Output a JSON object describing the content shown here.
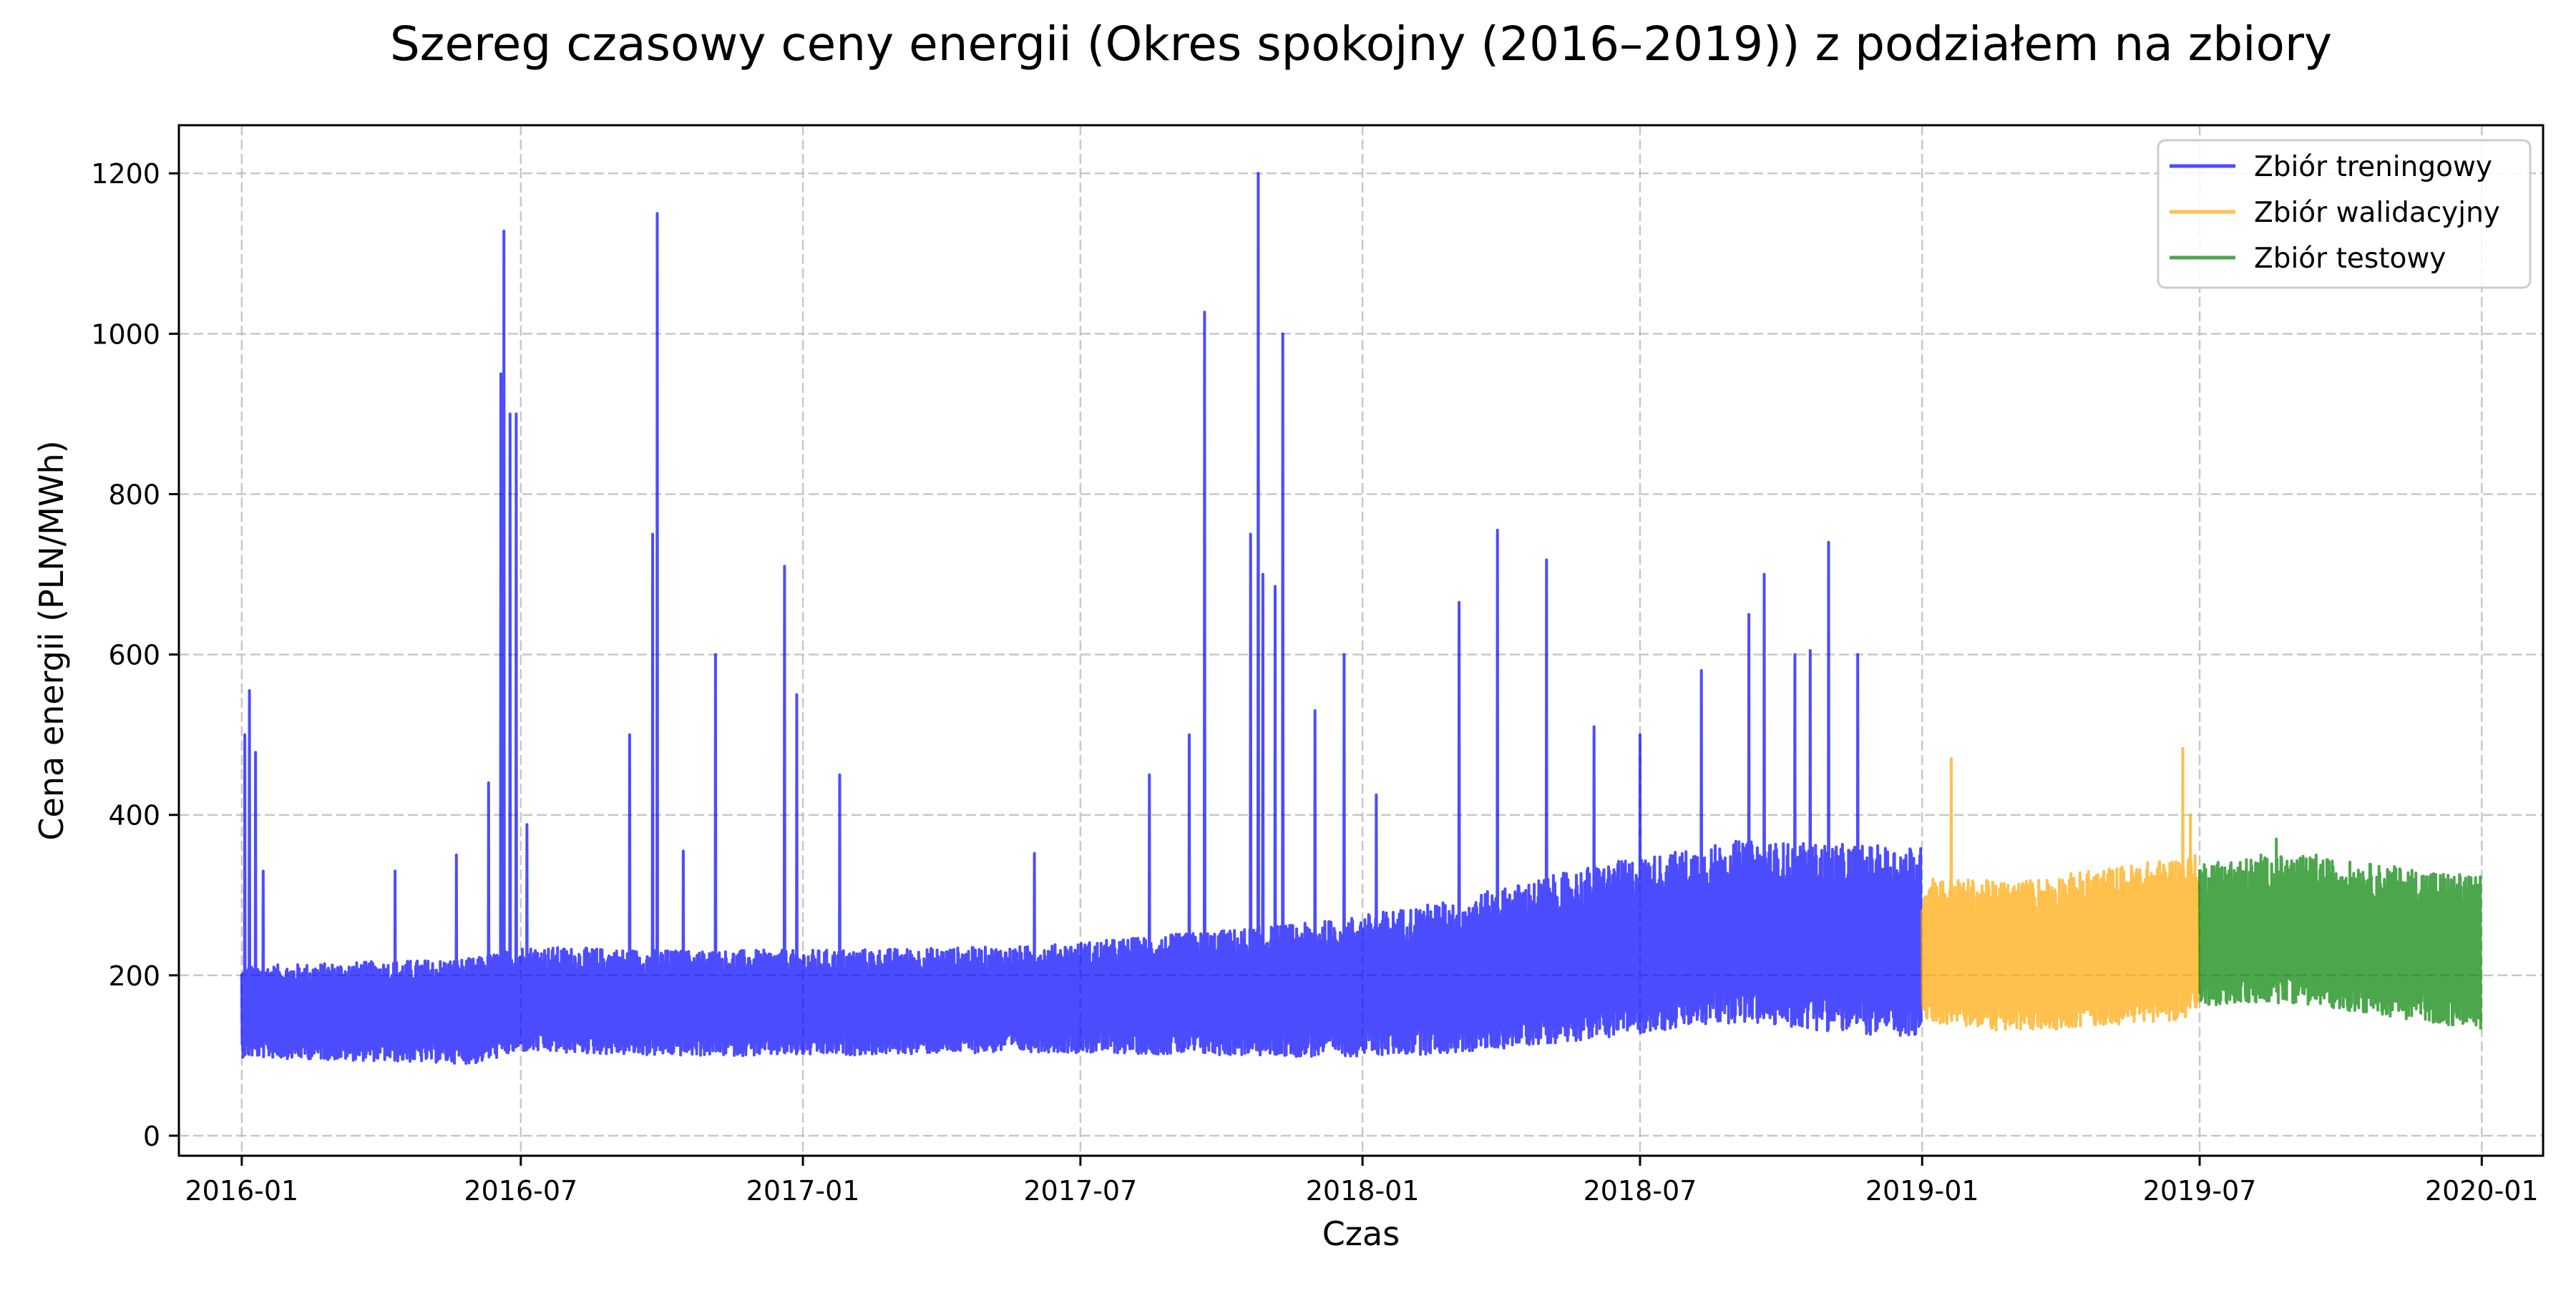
{
  "chart_data": {
    "type": "line",
    "title": "Szereg czasowy ceny energii (Okres spokojny (2016–2019)) z podziałem na zbiory",
    "xlabel": "Czas",
    "ylabel": "Cena energii (PLN/MWh)",
    "ylim": [
      -25,
      1260
    ],
    "xlim": [
      "2015-11-21",
      "2020-02-10"
    ],
    "yticks": [
      0,
      200,
      400,
      600,
      800,
      1000,
      1200
    ],
    "xticks": [
      "2016-01",
      "2016-07",
      "2017-01",
      "2017-07",
      "2018-01",
      "2018-07",
      "2019-01",
      "2019-07",
      "2020-01"
    ],
    "grid": true,
    "legend_position": "top-right",
    "series": [
      {
        "name": "Zbiór treningowy",
        "color": "#0000ff",
        "start": "2016-01-01",
        "end": "2018-12-31",
        "base_level": [
          [
            "2016-01-01",
            150
          ],
          [
            "2016-06-01",
            150
          ],
          [
            "2016-07-01",
            165
          ],
          [
            "2016-10-01",
            160
          ],
          [
            "2017-01-01",
            160
          ],
          [
            "2017-06-01",
            165
          ],
          [
            "2017-12-01",
            175
          ],
          [
            "2018-03-01",
            190
          ],
          [
            "2018-06-01",
            220
          ],
          [
            "2018-09-01",
            245
          ],
          [
            "2018-12-31",
            230
          ]
        ],
        "band_width": [
          [
            "2016-01-01",
            95
          ],
          [
            "2016-06-01",
            110
          ],
          [
            "2017-06-01",
            110
          ],
          [
            "2017-12-01",
            140
          ],
          [
            "2018-06-01",
            180
          ],
          [
            "2018-12-31",
            200
          ]
        ],
        "peaks": [
          [
            "2016-01-03",
            500
          ],
          [
            "2016-01-06",
            555
          ],
          [
            "2016-01-10",
            478
          ],
          [
            "2016-01-15",
            330
          ],
          [
            "2016-04-10",
            330
          ],
          [
            "2016-05-20",
            350
          ],
          [
            "2016-06-10",
            440
          ],
          [
            "2016-06-18",
            950
          ],
          [
            "2016-06-20",
            1128
          ],
          [
            "2016-06-24",
            900
          ],
          [
            "2016-06-28",
            900
          ],
          [
            "2016-07-05",
            388
          ],
          [
            "2016-09-10",
            500
          ],
          [
            "2016-09-25",
            750
          ],
          [
            "2016-09-28",
            1150
          ],
          [
            "2016-10-15",
            355
          ],
          [
            "2016-11-05",
            600
          ],
          [
            "2016-12-20",
            710
          ],
          [
            "2016-12-28",
            550
          ],
          [
            "2017-01-25",
            450
          ],
          [
            "2017-06-01",
            352
          ],
          [
            "2017-08-15",
            450
          ],
          [
            "2017-09-10",
            500
          ],
          [
            "2017-09-20",
            1027
          ],
          [
            "2017-10-20",
            750
          ],
          [
            "2017-10-25",
            1200
          ],
          [
            "2017-10-28",
            700
          ],
          [
            "2017-11-05",
            685
          ],
          [
            "2017-11-10",
            1000
          ],
          [
            "2017-12-01",
            530
          ],
          [
            "2017-12-20",
            600
          ],
          [
            "2018-01-10",
            425
          ],
          [
            "2018-03-05",
            665
          ],
          [
            "2018-03-30",
            755
          ],
          [
            "2018-05-01",
            718
          ],
          [
            "2018-06-01",
            510
          ],
          [
            "2018-07-01",
            500
          ],
          [
            "2018-08-10",
            580
          ],
          [
            "2018-09-10",
            650
          ],
          [
            "2018-09-20",
            700
          ],
          [
            "2018-10-10",
            600
          ],
          [
            "2018-10-20",
            605
          ],
          [
            "2018-11-01",
            740
          ],
          [
            "2018-11-20",
            600
          ]
        ]
      },
      {
        "name": "Zbiór walidacyjny",
        "color": "#ffa500",
        "start": "2019-01-01",
        "end": "2019-06-30",
        "base_level": [
          [
            "2019-01-01",
            225
          ],
          [
            "2019-03-01",
            215
          ],
          [
            "2019-06-30",
            240
          ]
        ],
        "band_width": [
          [
            "2019-01-01",
            150
          ],
          [
            "2019-06-30",
            170
          ]
        ],
        "peaks": [
          [
            "2019-01-08",
            320
          ],
          [
            "2019-01-20",
            470
          ],
          [
            "2019-06-20",
            483
          ],
          [
            "2019-06-25",
            400
          ]
        ]
      },
      {
        "name": "Zbiór testowy",
        "color": "#008000",
        "start": "2019-07-01",
        "end": "2019-12-31",
        "base_level": [
          [
            "2019-07-01",
            245
          ],
          [
            "2019-09-01",
            250
          ],
          [
            "2019-12-31",
            220
          ]
        ],
        "band_width": [
          [
            "2019-07-01",
            150
          ],
          [
            "2019-12-31",
            160
          ]
        ],
        "peaks": [
          [
            "2019-07-20",
            330
          ],
          [
            "2019-08-10",
            350
          ],
          [
            "2019-08-20",
            370
          ],
          [
            "2019-09-15",
            350
          ]
        ]
      }
    ]
  }
}
